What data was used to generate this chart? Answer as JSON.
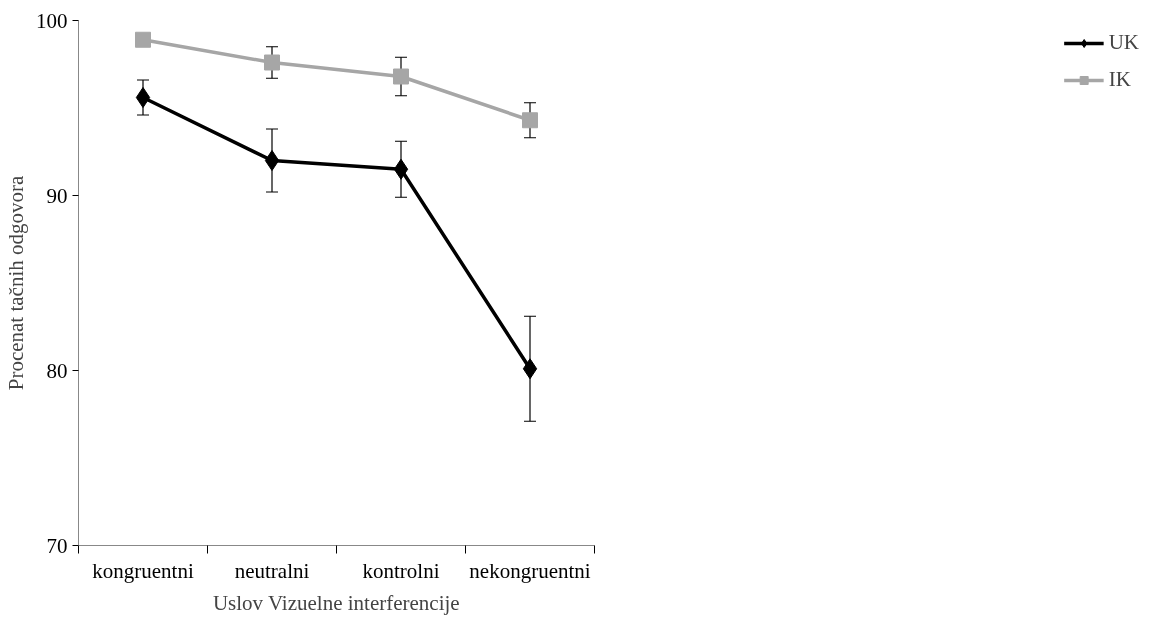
{
  "chart_data": {
    "type": "line",
    "xlabel": "Uslov Vizuelne interferencije",
    "ylabel": "Procenat tačnih odgovora",
    "categories": [
      "kongruentni",
      "neutralni",
      "kontrolni",
      "nekongruentni"
    ],
    "series": [
      {
        "name": "UK",
        "color": "#000000",
        "marker": "diamond",
        "values": [
          95.6,
          92.0,
          91.5,
          80.1
        ],
        "errors": [
          1.0,
          1.8,
          1.6,
          3.0
        ]
      },
      {
        "name": "IK",
        "color": "#a6a6a6",
        "marker": "square",
        "values": [
          98.9,
          97.6,
          96.8,
          94.3
        ],
        "errors": [
          null,
          0.9,
          1.1,
          1.0
        ]
      }
    ],
    "ylim": [
      70,
      100
    ],
    "yticks": [
      70,
      80,
      90,
      100
    ],
    "grid": false,
    "legend": "right"
  }
}
